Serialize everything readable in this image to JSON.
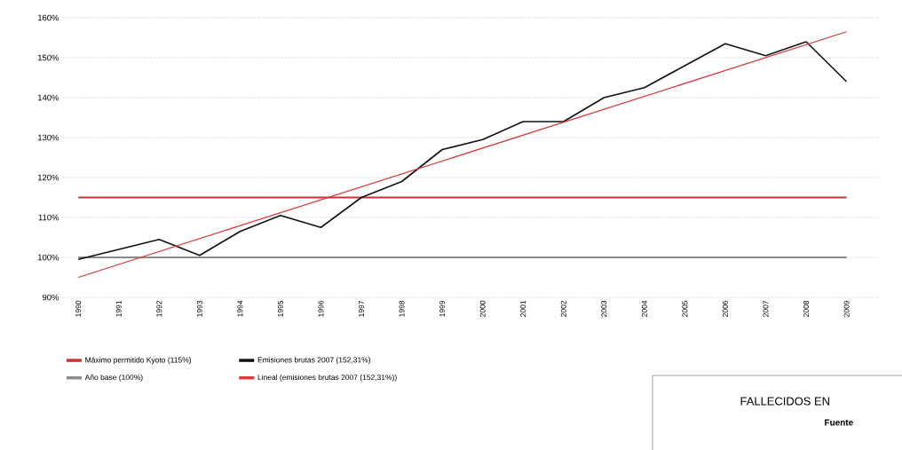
{
  "chart_data": {
    "type": "line",
    "x": [
      1990,
      1991,
      1992,
      1993,
      1994,
      1995,
      1996,
      1997,
      1998,
      1999,
      2000,
      2001,
      2002,
      2003,
      2004,
      2005,
      2006,
      2007,
      2008,
      2009
    ],
    "series": [
      {
        "name": "Emisiones brutas 2007 (152,31%)",
        "color": "#111111",
        "values": [
          99.5,
          102,
          104.5,
          100.5,
          106.5,
          110.5,
          107.5,
          115,
          119,
          127,
          129.5,
          134,
          134,
          140,
          142.5,
          148,
          153.5,
          150.5,
          154,
          144
        ]
      },
      {
        "name": "Lineal (emisiones brutas 2007 (152,31%))",
        "type": "line",
        "color": "#d93a3a",
        "x": [
          1990,
          2009
        ],
        "values": [
          95,
          156.5
        ]
      }
    ],
    "ref_lines": [
      {
        "axis": "y",
        "value": 115,
        "label": "Máximo permitido Kyoto (115%)",
        "color": "#cc3333"
      },
      {
        "axis": "y",
        "value": 100,
        "label": "Año base (100%)",
        "color": "#8c8c8c"
      }
    ],
    "xlim": [
      1989.6,
      2009.8
    ],
    "xticks": [
      1990,
      1991,
      1992,
      1993,
      1994,
      1995,
      1996,
      1997,
      1998,
      1999,
      2000,
      2001,
      2002,
      2003,
      2004,
      2005,
      2006,
      2007,
      2008,
      2009
    ],
    "ylim": [
      90,
      160
    ],
    "yticks": [
      {
        "value": 90,
        "label": "90%"
      },
      {
        "value": 100,
        "label": "100%"
      },
      {
        "value": 110,
        "label": "110%"
      },
      {
        "value": 120,
        "label": "120%"
      },
      {
        "value": 130,
        "label": "130%"
      },
      {
        "value": 140,
        "label": "140%"
      },
      {
        "value": 150,
        "label": "150%"
      },
      {
        "value": 160,
        "label": "160%"
      }
    ],
    "grid": "y",
    "legend": "bottom",
    "marker": "none",
    "line_style": "solid",
    "annotations": [
      "FALLECIDOS EN",
      "Fuente"
    ]
  }
}
